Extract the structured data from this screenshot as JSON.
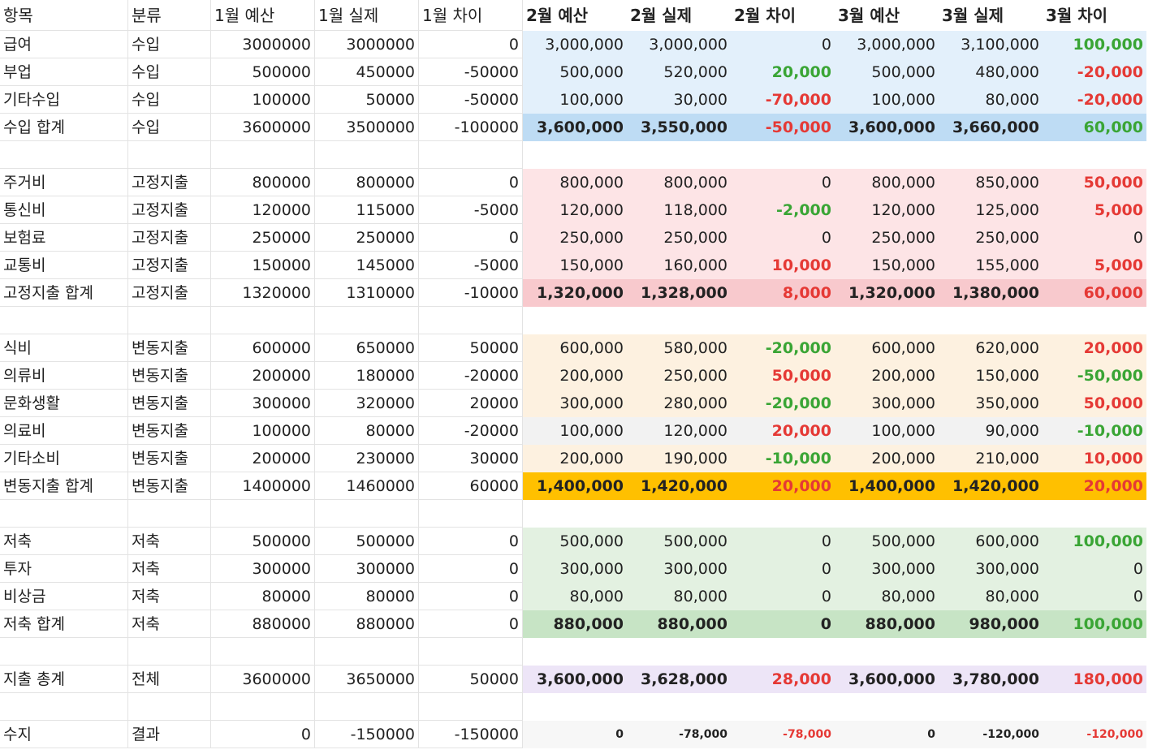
{
  "table": {
    "headers": [
      "항목",
      "분류",
      "1월 예산",
      "1월 실제",
      "1월 차이",
      "2월 예산",
      "2월 실제",
      "2월 차이",
      "3월 예산",
      "3월 실제",
      "3월 차이"
    ],
    "sections": [
      {
        "rows": [
          [
            "급여",
            "수입",
            "3000000",
            "3000000",
            "0",
            "3,000,000",
            "3,000,000",
            "0",
            "3,000,000",
            "3,100,000",
            "100,000"
          ],
          [
            "부업",
            "수입",
            "500000",
            "450000",
            "-50000",
            "500,000",
            "520,000",
            "20,000",
            "500,000",
            "480,000",
            "-20,000"
          ],
          [
            "기타수입",
            "수입",
            "100000",
            "50000",
            "-50000",
            "100,000",
            "30,000",
            "-70,000",
            "100,000",
            "80,000",
            "-20,000"
          ],
          [
            "수입 합계",
            "수입",
            "3600000",
            "3500000",
            "-100000",
            "3,600,000",
            "3,550,000",
            "-50,000",
            "3,600,000",
            "3,660,000",
            "60,000"
          ]
        ]
      },
      {
        "rows": [
          [
            "주거비",
            "고정지출",
            "800000",
            "800000",
            "0",
            "800,000",
            "800,000",
            "0",
            "800,000",
            "850,000",
            "50,000"
          ],
          [
            "통신비",
            "고정지출",
            "120000",
            "115000",
            "-5000",
            "120,000",
            "118,000",
            "-2,000",
            "120,000",
            "125,000",
            "5,000"
          ],
          [
            "보험료",
            "고정지출",
            "250000",
            "250000",
            "0",
            "250,000",
            "250,000",
            "0",
            "250,000",
            "250,000",
            "0"
          ],
          [
            "교통비",
            "고정지출",
            "150000",
            "145000",
            "-5000",
            "150,000",
            "160,000",
            "10,000",
            "150,000",
            "155,000",
            "5,000"
          ],
          [
            "고정지출 합계",
            "고정지출",
            "1320000",
            "1310000",
            "-10000",
            "1,320,000",
            "1,328,000",
            "8,000",
            "1,320,000",
            "1,380,000",
            "60,000"
          ]
        ]
      },
      {
        "rows": [
          [
            "식비",
            "변동지출",
            "600000",
            "650000",
            "50000",
            "600,000",
            "580,000",
            "-20,000",
            "600,000",
            "620,000",
            "20,000"
          ],
          [
            "의류비",
            "변동지출",
            "200000",
            "180000",
            "-20000",
            "200,000",
            "250,000",
            "50,000",
            "200,000",
            "150,000",
            "-50,000"
          ],
          [
            "문화생활",
            "변동지출",
            "300000",
            "320000",
            "20000",
            "300,000",
            "280,000",
            "-20,000",
            "300,000",
            "350,000",
            "50,000"
          ],
          [
            "의료비",
            "변동지출",
            "100000",
            "80000",
            "-20000",
            "100,000",
            "120,000",
            "20,000",
            "100,000",
            "90,000",
            "-10,000"
          ],
          [
            "기타소비",
            "변동지출",
            "200000",
            "230000",
            "30000",
            "200,000",
            "190,000",
            "-10,000",
            "200,000",
            "210,000",
            "10,000"
          ],
          [
            "변동지출 합계",
            "변동지출",
            "1400000",
            "1460000",
            "60000",
            "1,400,000",
            "1,420,000",
            "20,000",
            "1,400,000",
            "1,420,000",
            "20,000"
          ]
        ]
      },
      {
        "rows": [
          [
            "저축",
            "저축",
            "500000",
            "500000",
            "0",
            "500,000",
            "500,000",
            "0",
            "500,000",
            "600,000",
            "100,000"
          ],
          [
            "투자",
            "저축",
            "300000",
            "300000",
            "0",
            "300,000",
            "300,000",
            "0",
            "300,000",
            "300,000",
            "0"
          ],
          [
            "비상금",
            "저축",
            "80000",
            "80000",
            "0",
            "80,000",
            "80,000",
            "0",
            "80,000",
            "80,000",
            "0"
          ],
          [
            "저축 합계",
            "저축",
            "880000",
            "880000",
            "0",
            "880,000",
            "880,000",
            "0",
            "880,000",
            "980,000",
            "100,000"
          ]
        ]
      },
      {
        "rows": [
          [
            "지출 총계",
            "전체",
            "3600000",
            "3650000",
            "50000",
            "3,600,000",
            "3,628,000",
            "28,000",
            "3,600,000",
            "3,780,000",
            "180,000"
          ]
        ]
      },
      {
        "rows": [
          [
            "수지",
            "결과",
            "0",
            "-150000",
            "-150000",
            "0",
            "-78,000",
            "-78,000",
            "0",
            "-120,000",
            "-120,000"
          ]
        ]
      }
    ]
  }
}
